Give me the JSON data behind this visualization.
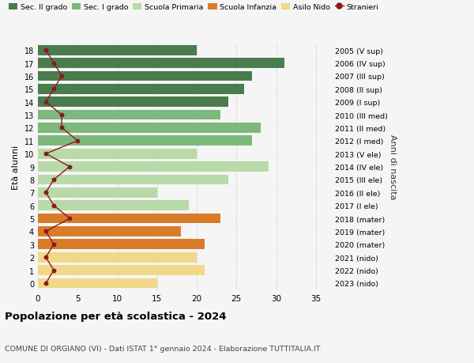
{
  "ages": [
    18,
    17,
    16,
    15,
    14,
    13,
    12,
    11,
    10,
    9,
    8,
    7,
    6,
    5,
    4,
    3,
    2,
    1,
    0
  ],
  "right_labels": [
    "2005 (V sup)",
    "2006 (IV sup)",
    "2007 (III sup)",
    "2008 (II sup)",
    "2009 (I sup)",
    "2010 (III med)",
    "2011 (II med)",
    "2012 (I med)",
    "2013 (V ele)",
    "2014 (IV ele)",
    "2015 (III ele)",
    "2016 (II ele)",
    "2017 (I ele)",
    "2018 (mater)",
    "2019 (mater)",
    "2020 (mater)",
    "2021 (nido)",
    "2022 (nido)",
    "2023 (nido)"
  ],
  "bar_values": [
    20,
    31,
    27,
    26,
    24,
    23,
    28,
    27,
    20,
    29,
    24,
    15,
    19,
    23,
    18,
    21,
    20,
    21,
    15
  ],
  "bar_colors": [
    "#4a7c4e",
    "#4a7c4e",
    "#4a7c4e",
    "#4a7c4e",
    "#4a7c4e",
    "#7db87d",
    "#7db87d",
    "#7db87d",
    "#b8d9a8",
    "#b8d9a8",
    "#b8d9a8",
    "#b8d9a8",
    "#b8d9a8",
    "#d97c2a",
    "#d97c2a",
    "#d97c2a",
    "#f0d888",
    "#f0d888",
    "#f0d888"
  ],
  "stranieri_values": [
    1,
    2,
    3,
    2,
    1,
    3,
    3,
    5,
    1,
    4,
    2,
    1,
    2,
    4,
    1,
    2,
    1,
    2,
    1
  ],
  "stranieri_color": "#8b1a1a",
  "xlim": [
    0,
    37
  ],
  "xticks": [
    0,
    5,
    10,
    15,
    20,
    25,
    30,
    35
  ],
  "ylabel": "Età alunni",
  "right_ylabel": "Anni di nascita",
  "title": "Popolazione per età scolastica - 2024",
  "subtitle": "COMUNE DI ORGIANO (VI) - Dati ISTAT 1° gennaio 2024 - Elaborazione TUTTITALIA.IT",
  "legend_items": [
    {
      "label": "Sec. II grado",
      "color": "#4a7c4e"
    },
    {
      "label": "Sec. I grado",
      "color": "#7db87d"
    },
    {
      "label": "Scuola Primaria",
      "color": "#b8d9a8"
    },
    {
      "label": "Scuola Infanzia",
      "color": "#d97c2a"
    },
    {
      "label": "Asilo Nido",
      "color": "#f0d888"
    },
    {
      "label": "Stranieri",
      "color": "#8b1a1a"
    }
  ],
  "bg_color": "#f5f5f5",
  "bar_height": 0.78,
  "grid_color": "#cccccc"
}
